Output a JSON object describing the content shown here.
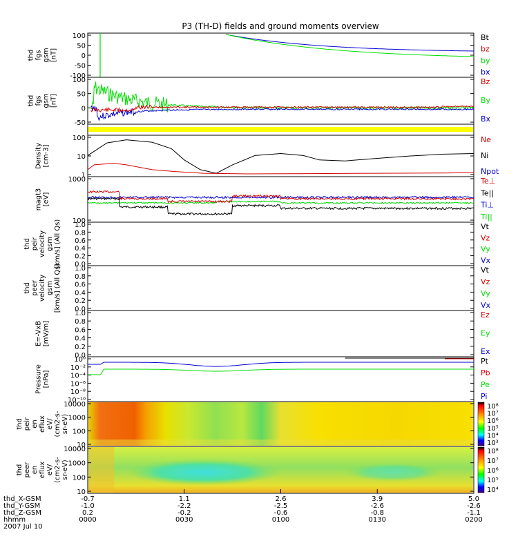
{
  "title": "P3 (TH-D) fields and ground moments overview",
  "colors": {
    "black": "#000000",
    "red": "#d40000",
    "green": "#00dd00",
    "blue": "#0000d0",
    "yellow": "#ffff00"
  },
  "chart_data": [
    {
      "type": "line",
      "name": "fgs_gsm_top",
      "ylabel": [
        "thd",
        "fgs",
        "gsm",
        "[nT]"
      ],
      "ylim": [
        -100,
        100
      ],
      "yticks": [
        "100",
        "50",
        "0",
        "-50",
        "-100"
      ],
      "legend": [
        {
          "label": "Bt",
          "color": "#000000"
        },
        {
          "label": "bz",
          "color": "#d40000"
        },
        {
          "label": "by",
          "color": "#00dd00"
        },
        {
          "label": "bx",
          "color": "#0000d0"
        }
      ]
    },
    {
      "type": "line",
      "name": "fgs_gsm_bottom",
      "ylabel": [
        "thd",
        "fgs",
        "gsm",
        "[nT]"
      ],
      "ylim": [
        -50,
        100
      ],
      "yticks": [
        "100",
        "50",
        "0",
        "-50"
      ],
      "legend": [
        {
          "label": "Bz",
          "color": "#d40000"
        },
        {
          "label": "By",
          "color": "#00dd00"
        },
        {
          "label": "Bx",
          "color": "#0000d0"
        }
      ]
    },
    {
      "type": "line",
      "name": "density",
      "ylabel": [
        "Density",
        "[cm-3]"
      ],
      "scale": "log",
      "yticks": [
        "100",
        "10",
        "1"
      ],
      "legend": [
        {
          "label": "Ne",
          "color": "#d40000"
        },
        {
          "label": "Ni",
          "color": "#000000"
        },
        {
          "label": "Npot",
          "color": "#0000d0"
        }
      ],
      "series": [
        {
          "name": "Ni",
          "x": [
            0,
            6,
            12,
            20,
            26,
            30,
            35,
            40,
            45,
            52,
            60,
            67,
            72,
            80,
            90,
            100,
            110,
            120
          ],
          "y": [
            15,
            90,
            140,
            100,
            40,
            8,
            2,
            1.2,
            4,
            15,
            20,
            15,
            8,
            7,
            10,
            14,
            18,
            20
          ]
        },
        {
          "name": "Ne",
          "x": [
            0,
            2,
            8,
            12,
            20,
            28,
            36,
            50,
            70,
            90,
            110,
            120
          ],
          "y": [
            2,
            4,
            5,
            4,
            2,
            1.5,
            1.2,
            1.1,
            1.15,
            1.2,
            1.25,
            1.3
          ]
        }
      ]
    },
    {
      "type": "line",
      "name": "temperature",
      "ylabel": [
        "magt3",
        "[eV]"
      ],
      "scale": "log",
      "yticks": [
        "1000",
        "100"
      ],
      "legend": [
        {
          "label": "Te⊥",
          "color": "#d40000"
        },
        {
          "label": "Te||",
          "color": "#000000"
        },
        {
          "label": "Ti⊥",
          "color": "#0000d0"
        },
        {
          "label": "Ti||",
          "color": "#00dd00"
        }
      ]
    },
    {
      "type": "line",
      "name": "ion_velocity",
      "ylabel": [
        "thd",
        "peir",
        "velocity",
        "gsm",
        "[km/s] (All Qs)"
      ],
      "ylim": [
        0,
        1
      ],
      "yticks": [
        "1.0",
        "0.8",
        "0.6",
        "0.4",
        "0.2",
        "0.0"
      ],
      "legend": [
        {
          "label": "Vt",
          "color": "#000000"
        },
        {
          "label": "Vz",
          "color": "#d40000"
        },
        {
          "label": "Vy",
          "color": "#00dd00"
        },
        {
          "label": "Vx",
          "color": "#0000d0"
        }
      ]
    },
    {
      "type": "line",
      "name": "electron_velocity",
      "ylabel": [
        "thd",
        "peer",
        "velocity",
        "gsm",
        "[km/s] (All Qs)"
      ],
      "ylim": [
        0,
        1
      ],
      "yticks": [
        "1.0",
        "0.8",
        "0.6",
        "0.4",
        "0.2",
        "0.0"
      ],
      "legend": [
        {
          "label": "Vt",
          "color": "#000000"
        },
        {
          "label": "Vz",
          "color": "#d40000"
        },
        {
          "label": "Vy",
          "color": "#00dd00"
        },
        {
          "label": "Vx",
          "color": "#0000d0"
        }
      ]
    },
    {
      "type": "line",
      "name": "efield",
      "ylabel": [
        "E=-VxB",
        "[mV/m]"
      ],
      "ylim": [
        0,
        1
      ],
      "yticks": [
        "1.0",
        "0.8",
        "0.6",
        "0.4",
        "0.2",
        "0.0"
      ],
      "legend": [
        {
          "label": "Ez",
          "color": "#d40000"
        },
        {
          "label": "Ey",
          "color": "#00dd00"
        },
        {
          "label": "Ex",
          "color": "#0000d0"
        }
      ]
    },
    {
      "type": "line",
      "name": "pressure",
      "ylabel": [
        "Pressure",
        "[nPa]"
      ],
      "scale": "log",
      "yticks": [
        "10⁰",
        "10⁻²",
        "10⁻⁴",
        "10⁻⁶",
        "10⁻⁸",
        "10⁻¹⁰"
      ],
      "legend": [
        {
          "label": "Pt",
          "color": "#000000"
        },
        {
          "label": "Pb",
          "color": "#d40000"
        },
        {
          "label": "Pe",
          "color": "#00dd00"
        },
        {
          "label": "Pi",
          "color": "#0000d0"
        }
      ]
    },
    {
      "type": "heatmap",
      "name": "ion_spectrogram",
      "ylabel": [
        "thd",
        "peir",
        "en",
        "eflux",
        "eV/",
        "(cm2-s-",
        "sr-eV)"
      ],
      "yticks": [
        "10000",
        "1000",
        "100",
        "10"
      ],
      "colorbar": [
        "10⁸",
        "10⁷",
        "10⁶",
        "10⁵",
        "10⁴",
        "10³"
      ]
    },
    {
      "type": "heatmap",
      "name": "electron_spectrogram",
      "ylabel": [
        "thd",
        "peer",
        "en",
        "eflux",
        "eV/",
        "(cm2-s-",
        "sr-eV)"
      ],
      "yticks": [
        "10000",
        "1000",
        "100",
        "10"
      ],
      "colorbar": [
        "10⁸",
        "10⁷",
        "10⁶",
        "10⁵",
        "10⁴"
      ]
    }
  ],
  "x_axis": {
    "rows": [
      {
        "label": "thd_X-GSM",
        "values": [
          "-0.7",
          "1.1",
          "2.6",
          "3.9",
          "5.0"
        ]
      },
      {
        "label": "thd_Y-GSM",
        "values": [
          "-1.0",
          "-2.2",
          "-2.5",
          "-2.6",
          "-2.6"
        ]
      },
      {
        "label": "thd_Z-GSM",
        "values": [
          "0.2",
          "-0.2",
          "-0.6",
          "-0.8",
          "-1.1"
        ]
      },
      {
        "label": "hhmm",
        "values": [
          "0000",
          "0030",
          "0100",
          "0130",
          "0200"
        ]
      }
    ],
    "date": "2007 Jul 10",
    "xlim": [
      0,
      120
    ],
    "tick_minutes": [
      0,
      30,
      60,
      90,
      120
    ]
  }
}
